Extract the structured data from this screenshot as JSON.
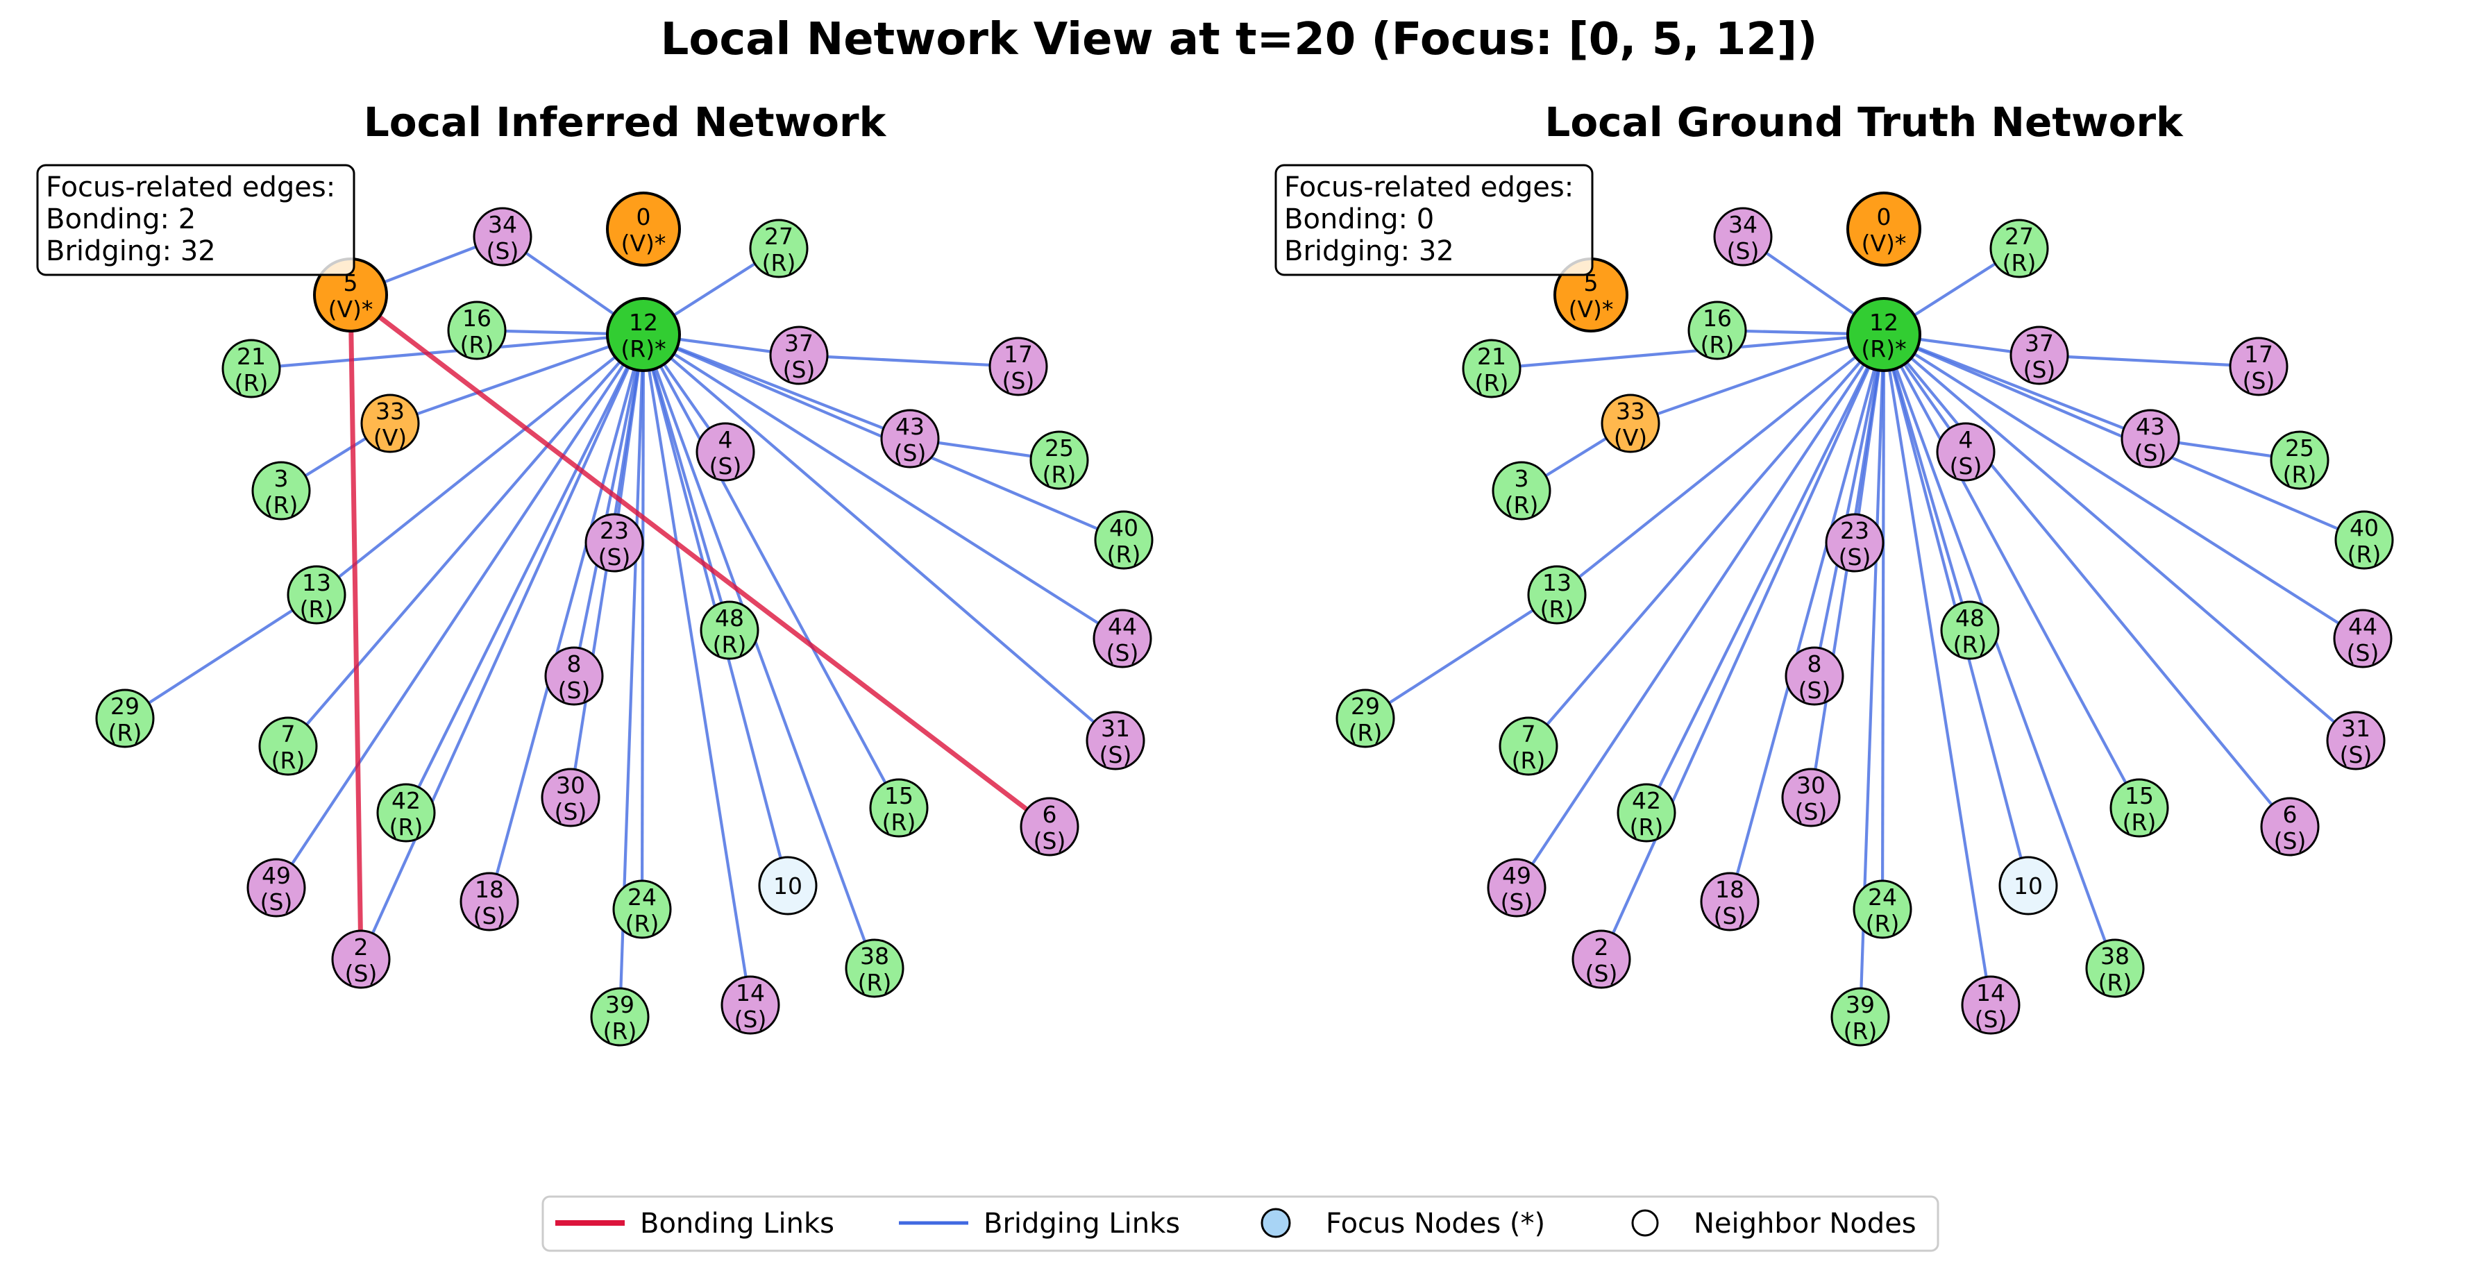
{
  "title": "Local Network View at t=20 (Focus: [0, 5, 12])",
  "colors": {
    "V_focus": "#ff9e1a",
    "V": "#ffb84d",
    "R_focus": "#32cd32",
    "R": "#98ee98",
    "S": "#dda0dd",
    "neighbor": "#e8f5fd",
    "bonding_edge": "#dc143c",
    "bridging_edge": "#4169e1",
    "focus_legend": "#a8d4f5"
  },
  "nodes": [
    {
      "id": "0",
      "label": "0",
      "type": "V",
      "focus": true
    },
    {
      "id": "5",
      "label": "5",
      "type": "V",
      "focus": true
    },
    {
      "id": "12",
      "label": "12",
      "type": "R",
      "focus": true
    },
    {
      "id": "34",
      "label": "34",
      "type": "S"
    },
    {
      "id": "27",
      "label": "27",
      "type": "R"
    },
    {
      "id": "16",
      "label": "16",
      "type": "R"
    },
    {
      "id": "21",
      "label": "21",
      "type": "R"
    },
    {
      "id": "37",
      "label": "37",
      "type": "S"
    },
    {
      "id": "17",
      "label": "17",
      "type": "S"
    },
    {
      "id": "33",
      "label": "33",
      "type": "V"
    },
    {
      "id": "3",
      "label": "3",
      "type": "R"
    },
    {
      "id": "4",
      "label": "4",
      "type": "S"
    },
    {
      "id": "43",
      "label": "43",
      "type": "S"
    },
    {
      "id": "25",
      "label": "25",
      "type": "R"
    },
    {
      "id": "40",
      "label": "40",
      "type": "R"
    },
    {
      "id": "23",
      "label": "23",
      "type": "S"
    },
    {
      "id": "13",
      "label": "13",
      "type": "R"
    },
    {
      "id": "48",
      "label": "48",
      "type": "R"
    },
    {
      "id": "44",
      "label": "44",
      "type": "S"
    },
    {
      "id": "8",
      "label": "8",
      "type": "S"
    },
    {
      "id": "29",
      "label": "29",
      "type": "R"
    },
    {
      "id": "7",
      "label": "7",
      "type": "R"
    },
    {
      "id": "31",
      "label": "31",
      "type": "S"
    },
    {
      "id": "30",
      "label": "30",
      "type": "S"
    },
    {
      "id": "42",
      "label": "42",
      "type": "R"
    },
    {
      "id": "15",
      "label": "15",
      "type": "R"
    },
    {
      "id": "6",
      "label": "6",
      "type": "S"
    },
    {
      "id": "49",
      "label": "49",
      "type": "S"
    },
    {
      "id": "10",
      "label": "10",
      "type": "neighbor"
    },
    {
      "id": "18",
      "label": "18",
      "type": "S"
    },
    {
      "id": "24",
      "label": "24",
      "type": "R"
    },
    {
      "id": "2",
      "label": "2",
      "type": "S"
    },
    {
      "id": "38",
      "label": "38",
      "type": "R"
    },
    {
      "id": "14",
      "label": "14",
      "type": "S"
    },
    {
      "id": "39",
      "label": "39",
      "type": "R"
    }
  ],
  "panels": [
    {
      "key": "inferred",
      "title": "Local Inferred Network",
      "stats": {
        "heading": "Focus-related edges:",
        "bonding": "Bonding: 2",
        "bridging": "Bridging: 32"
      },
      "bridging_edges": [
        [
          "5",
          "34"
        ],
        [
          "34",
          "12"
        ],
        [
          "12",
          "27"
        ],
        [
          "12",
          "16"
        ],
        [
          "12",
          "21"
        ],
        [
          "12",
          "37"
        ],
        [
          "37",
          "17"
        ],
        [
          "12",
          "33"
        ],
        [
          "33",
          "3"
        ],
        [
          "12",
          "4"
        ],
        [
          "12",
          "43"
        ],
        [
          "43",
          "25"
        ],
        [
          "12",
          "40"
        ],
        [
          "12",
          "23"
        ],
        [
          "12",
          "13"
        ],
        [
          "12",
          "48"
        ],
        [
          "12",
          "44"
        ],
        [
          "12",
          "8"
        ],
        [
          "13",
          "29"
        ],
        [
          "12",
          "7"
        ],
        [
          "12",
          "31"
        ],
        [
          "12",
          "30"
        ],
        [
          "12",
          "42"
        ],
        [
          "12",
          "15"
        ],
        [
          "12",
          "49"
        ],
        [
          "12",
          "10"
        ],
        [
          "12",
          "18"
        ],
        [
          "12",
          "24"
        ],
        [
          "12",
          "2"
        ],
        [
          "12",
          "38"
        ],
        [
          "12",
          "14"
        ],
        [
          "12",
          "39"
        ]
      ],
      "bonding_edges": [
        [
          "5",
          "2"
        ],
        [
          "5",
          "6"
        ]
      ]
    },
    {
      "key": "truth",
      "title": "Local Ground Truth Network",
      "stats": {
        "heading": "Focus-related edges:",
        "bonding": "Bonding: 0",
        "bridging": "Bridging: 32"
      },
      "bridging_edges": [
        [
          "34",
          "12"
        ],
        [
          "12",
          "27"
        ],
        [
          "12",
          "16"
        ],
        [
          "12",
          "21"
        ],
        [
          "12",
          "37"
        ],
        [
          "37",
          "17"
        ],
        [
          "12",
          "33"
        ],
        [
          "33",
          "3"
        ],
        [
          "12",
          "4"
        ],
        [
          "12",
          "43"
        ],
        [
          "43",
          "25"
        ],
        [
          "12",
          "40"
        ],
        [
          "12",
          "23"
        ],
        [
          "12",
          "13"
        ],
        [
          "12",
          "48"
        ],
        [
          "12",
          "44"
        ],
        [
          "12",
          "8"
        ],
        [
          "13",
          "29"
        ],
        [
          "12",
          "7"
        ],
        [
          "12",
          "31"
        ],
        [
          "12",
          "30"
        ],
        [
          "12",
          "42"
        ],
        [
          "12",
          "15"
        ],
        [
          "12",
          "49"
        ],
        [
          "12",
          "10"
        ],
        [
          "12",
          "18"
        ],
        [
          "12",
          "24"
        ],
        [
          "12",
          "2"
        ],
        [
          "12",
          "38"
        ],
        [
          "12",
          "14"
        ],
        [
          "12",
          "39"
        ],
        [
          "12",
          "6"
        ]
      ],
      "bonding_edges": []
    }
  ],
  "legend": {
    "bonding": "Bonding Links",
    "bridging": "Bridging Links",
    "focus": "Focus Nodes (*)",
    "neighbor": "Neighbor Nodes"
  }
}
